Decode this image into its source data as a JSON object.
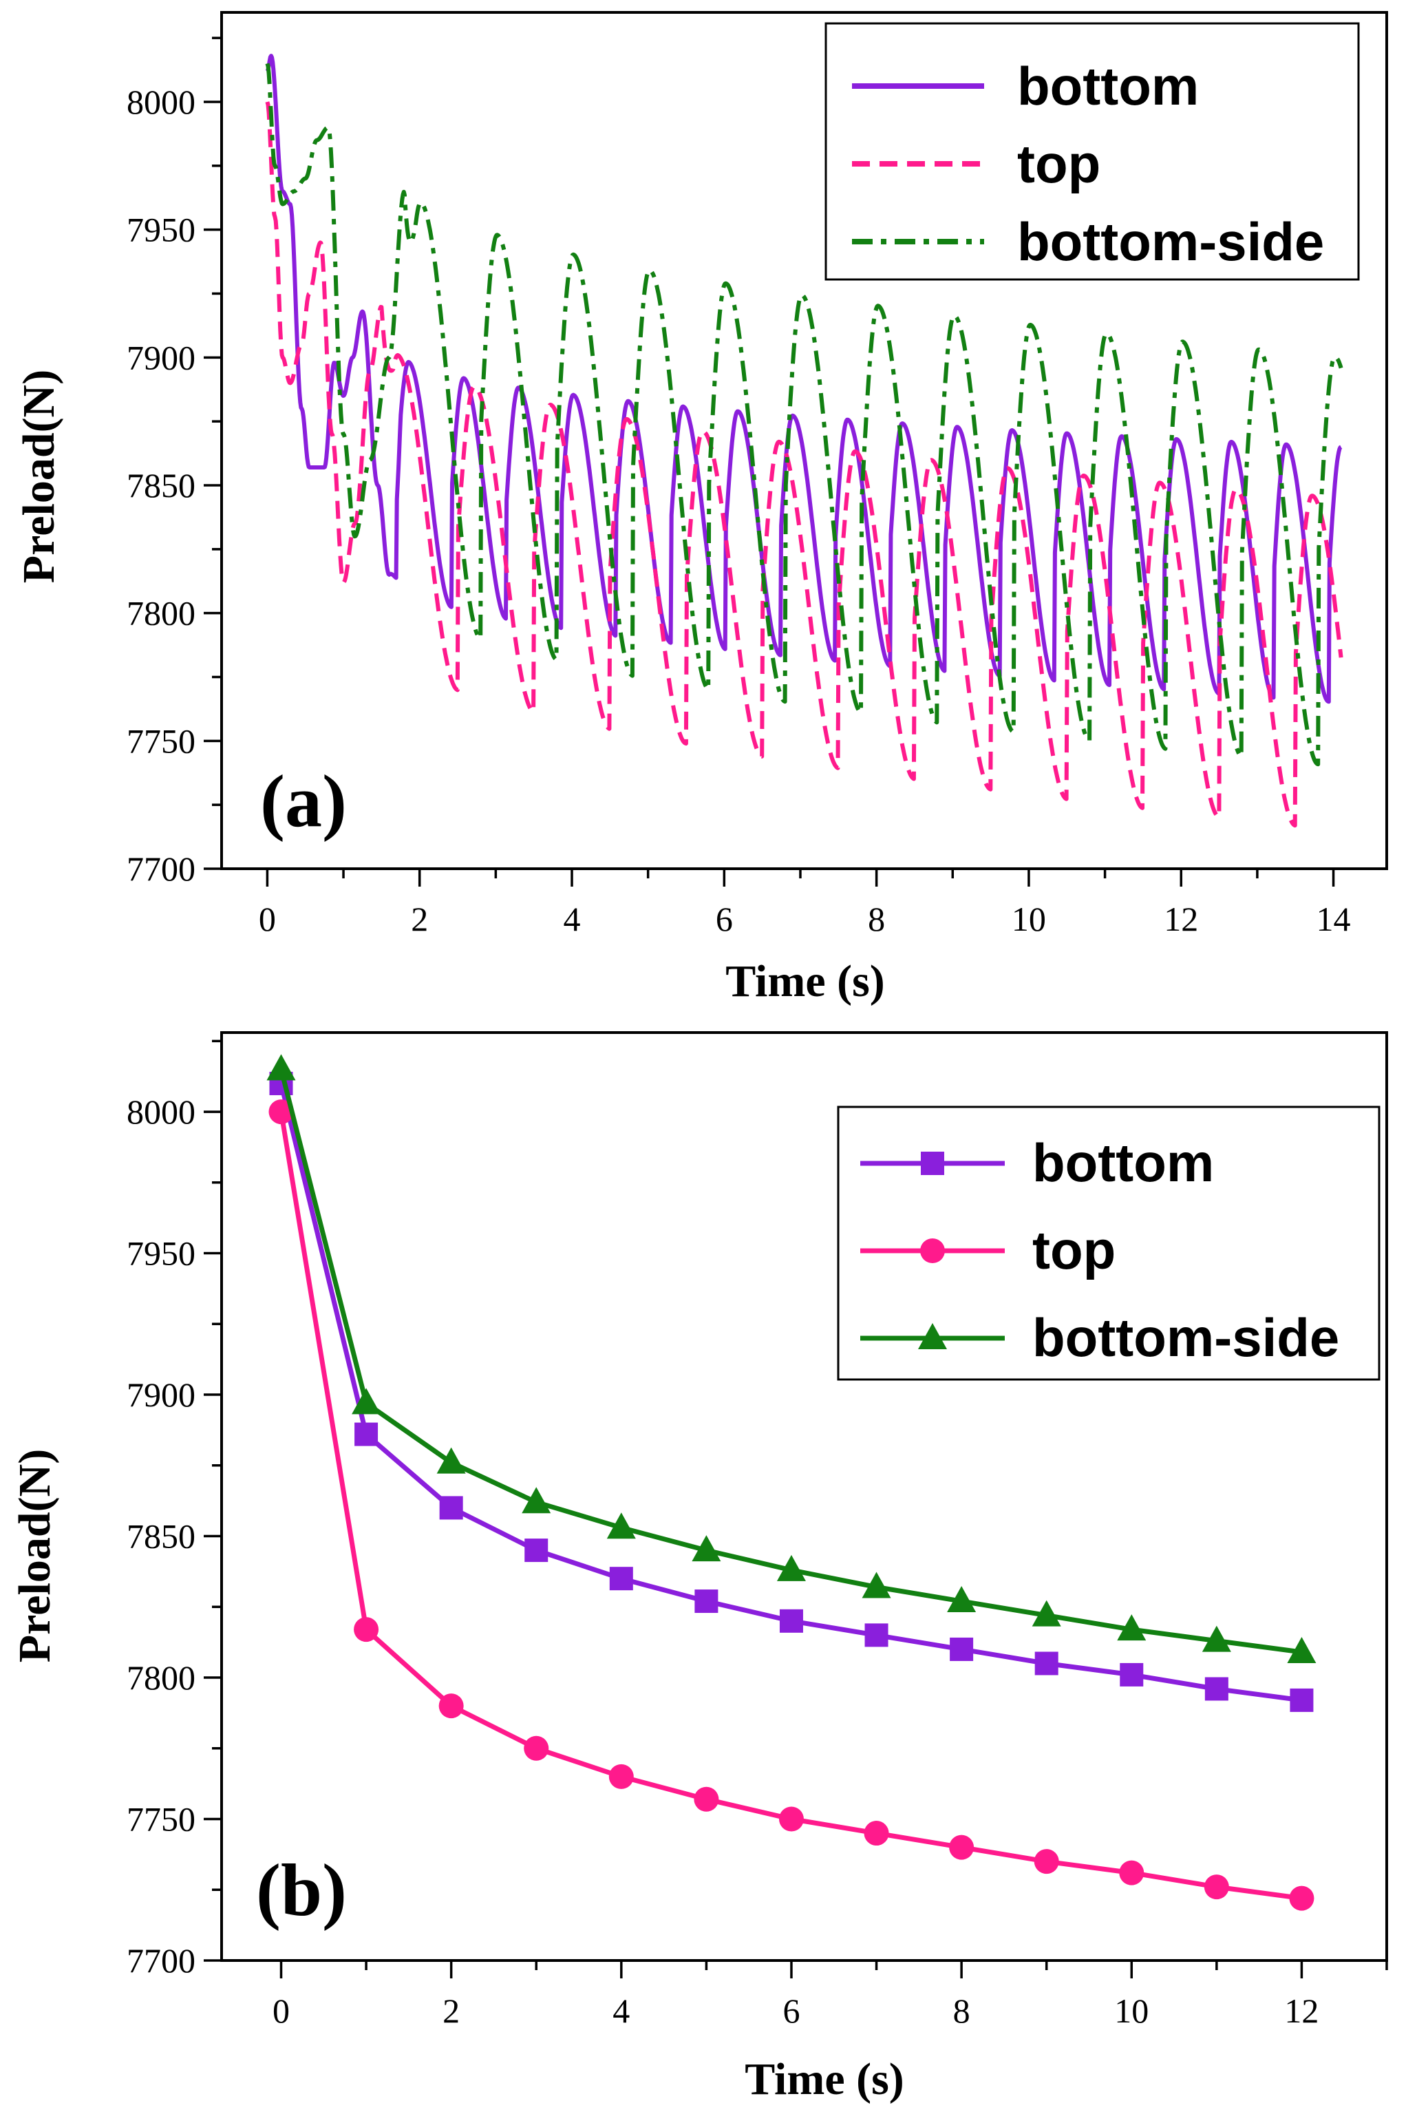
{
  "colors": {
    "bottom": "#8a1fdc",
    "top": "#ff1a8c",
    "bottom_side": "#128012",
    "axis": "#000000"
  },
  "chart_data": [
    {
      "type": "line",
      "panel_label": "(a)",
      "xlabel": "Time (s)",
      "ylabel": "Preload(N)",
      "xlim": [
        -0.6,
        14.7
      ],
      "ylim": [
        7700,
        8035
      ],
      "xticks": [
        0,
        2,
        4,
        6,
        8,
        10,
        12,
        14
      ],
      "yticks": [
        7700,
        7750,
        7800,
        7850,
        7900,
        7950,
        8000
      ],
      "legend_position": "top-right",
      "series": [
        {
          "name": "bottom",
          "style": "solid",
          "t_end": 14.1,
          "anchors": [
            [
              0.0,
              8012
            ],
            [
              0.05,
              8018
            ],
            [
              0.2,
              7965
            ],
            [
              0.3,
              7960
            ],
            [
              0.45,
              7880
            ],
            [
              0.55,
              7857
            ],
            [
              0.75,
              7857
            ],
            [
              0.88,
              7898
            ],
            [
              1.0,
              7885
            ],
            [
              1.12,
              7900
            ],
            [
              1.25,
              7918
            ],
            [
              1.45,
              7850
            ],
            [
              1.6,
              7815
            ]
          ],
          "osc": {
            "period": 0.72,
            "phase": 1.7,
            "amp_start": 45,
            "amp_end": 50,
            "center_start": 7858,
            "center_end": 7815,
            "decay": 0.22,
            "decay_ref": 1.7
          }
        },
        {
          "name": "top",
          "style": "dash",
          "t_end": 14.1,
          "anchors": [
            [
              0.0,
              8000
            ],
            [
              0.1,
              7955
            ],
            [
              0.2,
              7900
            ],
            [
              0.3,
              7890
            ],
            [
              0.45,
              7905
            ],
            [
              0.55,
              7925
            ],
            [
              0.7,
              7945
            ],
            [
              0.85,
              7870
            ],
            [
              1.0,
              7812
            ],
            [
              1.15,
              7835
            ],
            [
              1.35,
              7895
            ],
            [
              1.5,
              7920
            ]
          ],
          "osc": {
            "period": 1.0,
            "phase": 1.5,
            "amp_start": 60,
            "amp_end": 65,
            "center_start": 7850,
            "center_end": 7780,
            "decay": 0.22,
            "decay_ref": 1.5
          }
        },
        {
          "name": "bottom-side",
          "style": "dashdot",
          "t_end": 14.1,
          "anchors": [
            [
              0.0,
              8015
            ],
            [
              0.1,
              7975
            ],
            [
              0.2,
              7960
            ],
            [
              0.35,
              7965
            ],
            [
              0.5,
              7970
            ],
            [
              0.65,
              7985
            ],
            [
              0.8,
              7990
            ],
            [
              1.0,
              7870
            ],
            [
              1.15,
              7830
            ],
            [
              1.35,
              7860
            ],
            [
              1.6,
              7900
            ],
            [
              1.8,
              7965
            ]
          ],
          "osc": {
            "period": 1.0,
            "phase": 1.8,
            "amp_start": 80,
            "amp_end": 80,
            "center_start": 7890,
            "center_end": 7820,
            "decay": 0.2,
            "decay_ref": 1.8
          }
        }
      ]
    },
    {
      "type": "line",
      "panel_label": "(b)",
      "xlabel": "Time (s)",
      "ylabel": "Preload(N)",
      "xlim": [
        -0.7,
        13.0
      ],
      "ylim": [
        7700,
        8028
      ],
      "xticks": [
        0,
        2,
        4,
        6,
        8,
        10,
        12
      ],
      "yticks": [
        7700,
        7750,
        7800,
        7850,
        7900,
        7950,
        8000
      ],
      "legend_position": "top-right",
      "x": [
        0,
        1,
        2,
        3,
        4,
        5,
        6,
        7,
        8,
        9,
        10,
        11,
        12
      ],
      "series": [
        {
          "name": "bottom",
          "marker": "square",
          "values": [
            8010,
            7886,
            7860,
            7845,
            7835,
            7827,
            7820,
            7815,
            7810,
            7805,
            7801,
            7796,
            7792
          ]
        },
        {
          "name": "top",
          "marker": "circle",
          "values": [
            8000,
            7817,
            7790,
            7775,
            7765,
            7757,
            7750,
            7745,
            7740,
            7735,
            7731,
            7726,
            7722
          ]
        },
        {
          "name": "bottom-side",
          "marker": "triangle",
          "values": [
            8015,
            7897,
            7876,
            7862,
            7853,
            7845,
            7838,
            7832,
            7827,
            7822,
            7817,
            7813,
            7809
          ]
        }
      ]
    }
  ]
}
